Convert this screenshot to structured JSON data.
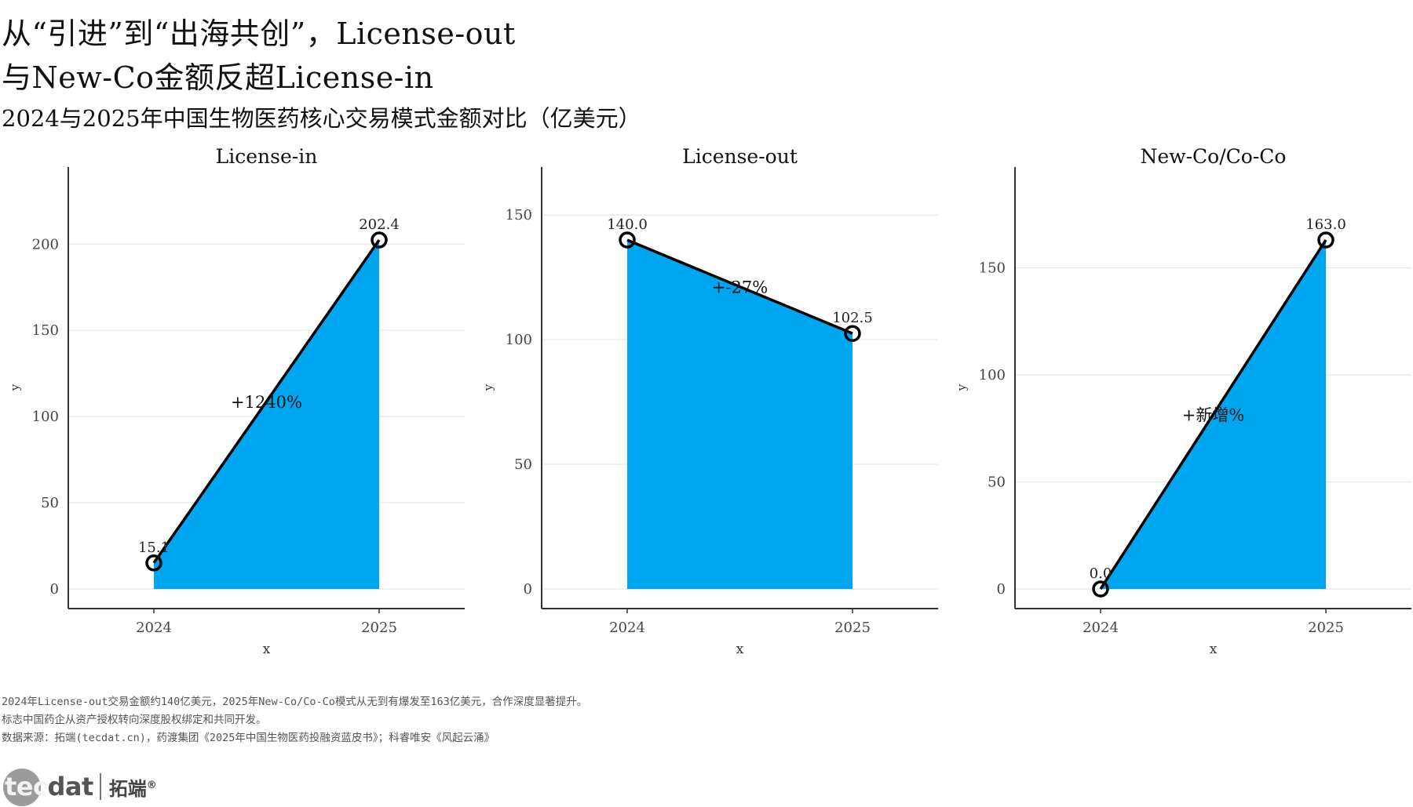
{
  "header": {
    "title_line1": "从“引进”到“出海共创”，License-out",
    "title_line2": "与New-Co金额反超License-in",
    "subtitle": "2024与2025年中国生物医药核心交易模式金额对比（亿美元）"
  },
  "colors": {
    "area_fill": "#00a6ef",
    "line": "#000000",
    "grid": "#e6e6e6",
    "axis": "#333333"
  },
  "chart_data": [
    {
      "type": "area",
      "title": "License-in",
      "xlabel": "x",
      "ylabel": "y",
      "categories": [
        "2024",
        "2025"
      ],
      "values": [
        15.1,
        202.4
      ],
      "point_labels": [
        "15.1",
        "202.4"
      ],
      "change_label": "+1240%",
      "ylim": [
        0,
        240
      ],
      "yticks": [
        0,
        50,
        100,
        150,
        200
      ],
      "grid": "horizontal"
    },
    {
      "type": "area",
      "title": "License-out",
      "xlabel": "x",
      "ylabel": "y",
      "categories": [
        "2024",
        "2025"
      ],
      "values": [
        140.0,
        102.5
      ],
      "point_labels": [
        "140.0",
        "102.5"
      ],
      "change_label": "+-27%",
      "ylim": [
        0,
        166
      ],
      "yticks": [
        0,
        50,
        100,
        150
      ],
      "grid": "horizontal"
    },
    {
      "type": "area",
      "title": "New-Co/Co-Co",
      "xlabel": "x",
      "ylabel": "y",
      "categories": [
        "2024",
        "2025"
      ],
      "values": [
        0.0,
        163.0
      ],
      "point_labels": [
        "0.0",
        "163.0"
      ],
      "change_label": "+新增%",
      "ylim": [
        0,
        193
      ],
      "yticks": [
        0,
        50,
        100,
        150
      ],
      "grid": "horizontal"
    }
  ],
  "footer": {
    "note_1": "2024年License-out交易金额约140亿美元，2025年New-Co/Co-Co模式从无到有爆发至163亿美元，合作深度显著提升。",
    "note_2": "标志中国药企从资产授权转向深度股权绑定和共同开发。",
    "note_3": "数据来源：拓端(tecdat.cn)，药渡集团《2025年中国生物医药投融资蓝皮书》；科睿唯安《风起云涌》",
    "logo_tec": "tec",
    "logo_dat": "dat",
    "logo_cn": "拓端",
    "logo_reg": "®"
  }
}
